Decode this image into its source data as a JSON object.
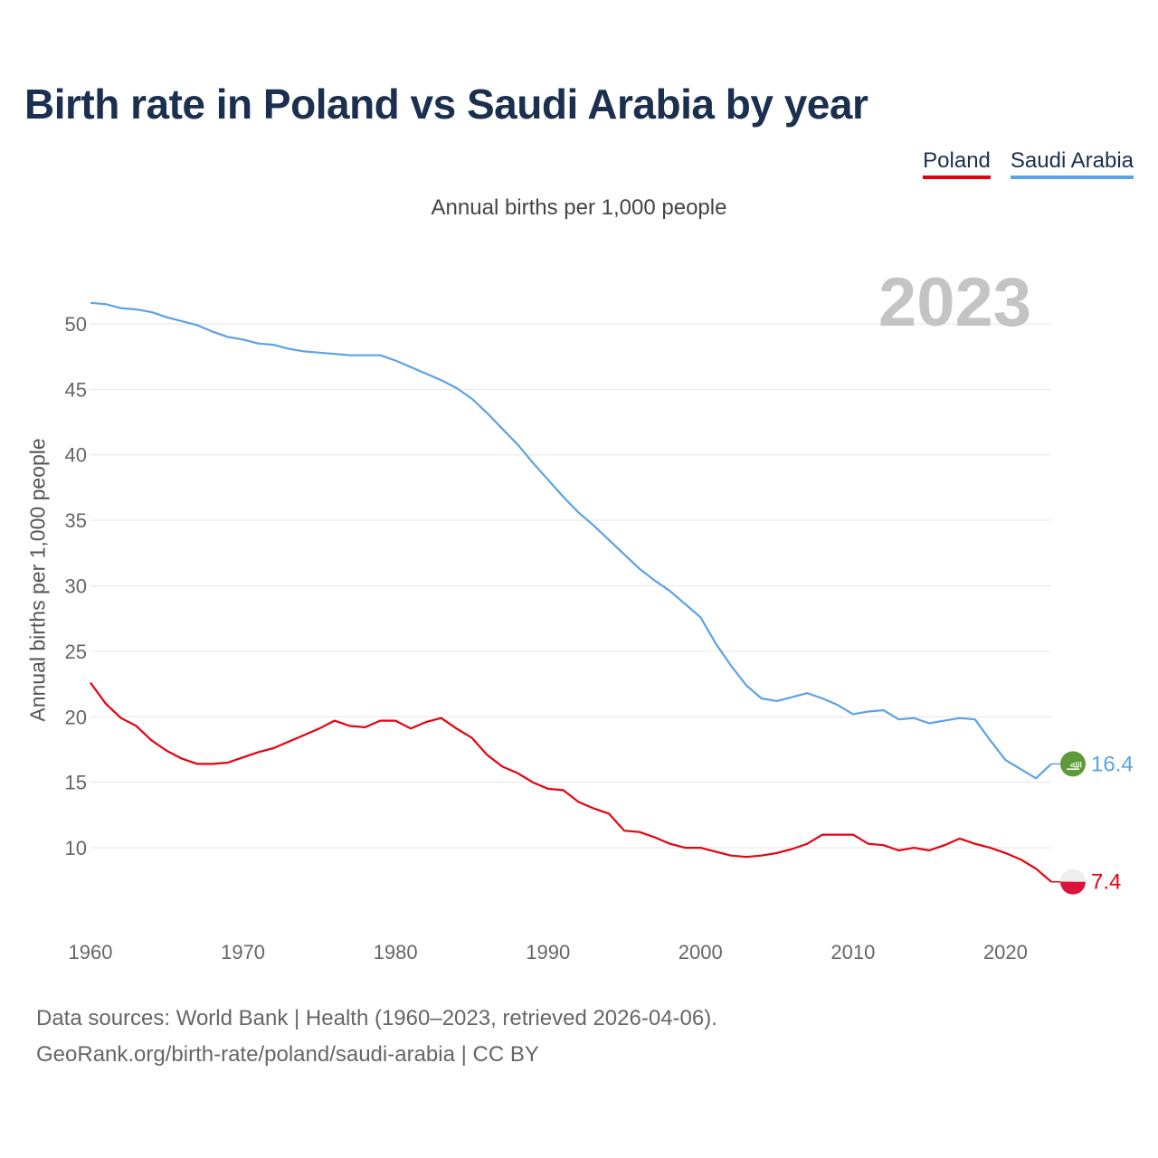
{
  "title": "Birth rate in Poland vs Saudi Arabia by year",
  "legend": {
    "poland": "Poland",
    "saudi": "Saudi Arabia"
  },
  "subtitle": "Annual births per 1,000 people",
  "footer": {
    "line1": "Data sources: World Bank | Health (1960–2023, retrieved 2026-04-06).",
    "line2": "GeoRank.org/birth-rate/poland/saudi-arabia | CC BY"
  },
  "chart_data": {
    "type": "line",
    "title": "Birth rate in Poland vs Saudi Arabia by year",
    "ylabel": "Annual births per 1,000 people",
    "xlabel": "",
    "year_label": "2023",
    "xlim": [
      1960,
      2023
    ],
    "ylim": [
      5,
      53
    ],
    "yticks": [
      10,
      15,
      20,
      25,
      30,
      35,
      40,
      45,
      50
    ],
    "xticks": [
      1960,
      1970,
      1980,
      1990,
      2000,
      2010,
      2020
    ],
    "grid": true,
    "series": [
      {
        "name": "Saudi Arabia",
        "color": "#5ba2e6",
        "end_label": "16.4",
        "values": [
          51.6,
          51.5,
          51.2,
          51.1,
          50.9,
          50.5,
          50.2,
          49.9,
          49.4,
          49.0,
          48.8,
          48.5,
          48.4,
          48.1,
          47.9,
          47.8,
          47.7,
          47.6,
          47.6,
          47.6,
          47.2,
          46.7,
          46.2,
          45.7,
          45.1,
          44.3,
          43.2,
          42.0,
          40.8,
          39.4,
          38.1,
          36.8,
          35.6,
          34.6,
          33.5,
          32.4,
          31.3,
          30.4,
          29.6,
          28.6,
          27.6,
          25.6,
          23.9,
          22.4,
          21.4,
          21.2,
          21.5,
          21.8,
          21.4,
          20.9,
          20.2,
          20.4,
          20.5,
          19.8,
          19.9,
          19.5,
          19.7,
          19.9,
          19.8,
          18.2,
          16.7,
          16.0,
          15.3,
          16.4
        ]
      },
      {
        "name": "Poland",
        "color": "#e8000d",
        "end_label": "7.4",
        "values": [
          22.6,
          21.0,
          19.9,
          19.3,
          18.2,
          17.4,
          16.8,
          16.4,
          16.4,
          16.5,
          16.9,
          17.3,
          17.6,
          18.1,
          18.6,
          19.1,
          19.7,
          19.3,
          19.2,
          19.7,
          19.7,
          19.1,
          19.6,
          19.9,
          19.1,
          18.4,
          17.1,
          16.2,
          15.7,
          15.0,
          14.5,
          14.4,
          13.5,
          13.0,
          12.6,
          11.3,
          11.2,
          10.8,
          10.3,
          10.0,
          10.0,
          9.7,
          9.4,
          9.3,
          9.4,
          9.6,
          9.9,
          10.3,
          11.0,
          11.0,
          11.0,
          10.3,
          10.2,
          9.8,
          10.0,
          9.8,
          10.2,
          10.7,
          10.3,
          10.0,
          9.6,
          9.1,
          8.4,
          7.4
        ]
      }
    ]
  }
}
